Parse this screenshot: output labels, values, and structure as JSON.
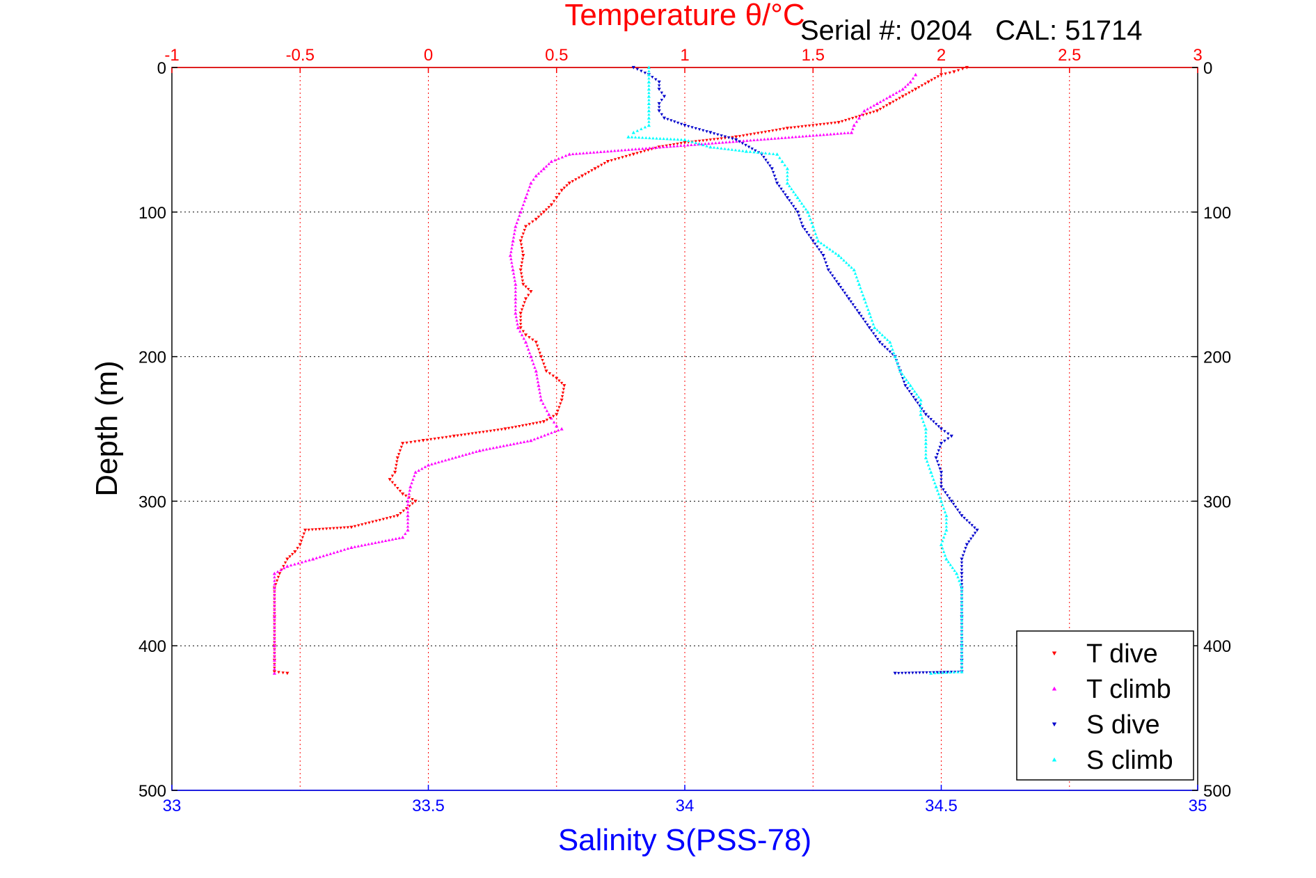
{
  "chart_data": {
    "type": "scatter",
    "title": "Temperature θ/°C",
    "serial_label": "Serial #: 0204   CAL: 51714",
    "xlabel_top": "Temperature θ/°C",
    "xlabel_bottom": "Salinity S(PSS-78)",
    "ylabel": "Depth (m)",
    "y_inverted": true,
    "ylim": [
      0,
      500
    ],
    "xlim_top": [
      -1,
      3
    ],
    "xlim_bottom": [
      33,
      35
    ],
    "grid": true,
    "legend_position": "bottom-right",
    "ticks_top": [
      "-1",
      "-0.5",
      "0",
      "0.5",
      "1",
      "1.5",
      "2",
      "2.5",
      "3"
    ],
    "ticks_bottom": [
      "33",
      "33.5",
      "34",
      "34.5",
      "35"
    ],
    "ticks_depth": [
      "0",
      "100",
      "200",
      "300",
      "400",
      "500"
    ],
    "colors": {
      "t_dive": "#ff0000",
      "t_climb": "#ff00ff",
      "s_dive": "#0000cc",
      "s_climb": "#00ffff",
      "grid_top": "#ff0000",
      "grid_depth": "#000000"
    },
    "series": [
      {
        "name": "T dive",
        "axis": "temperature",
        "marker": "triangle-down",
        "points": [
          [
            2.1,
            0
          ],
          [
            2.05,
            3
          ],
          [
            2.0,
            5
          ],
          [
            1.95,
            10
          ],
          [
            1.9,
            15
          ],
          [
            1.85,
            20
          ],
          [
            1.8,
            25
          ],
          [
            1.75,
            30
          ],
          [
            1.6,
            38
          ],
          [
            1.4,
            42
          ],
          [
            1.2,
            48
          ],
          [
            1.0,
            52
          ],
          [
            0.9,
            55
          ],
          [
            0.8,
            60
          ],
          [
            0.7,
            65
          ],
          [
            0.65,
            70
          ],
          [
            0.6,
            75
          ],
          [
            0.55,
            80
          ],
          [
            0.52,
            85
          ],
          [
            0.5,
            90
          ],
          [
            0.48,
            95
          ],
          [
            0.45,
            100
          ],
          [
            0.42,
            105
          ],
          [
            0.38,
            110
          ],
          [
            0.36,
            120
          ],
          [
            0.37,
            130
          ],
          [
            0.36,
            140
          ],
          [
            0.37,
            150
          ],
          [
            0.4,
            155
          ],
          [
            0.38,
            160
          ],
          [
            0.36,
            170
          ],
          [
            0.36,
            180
          ],
          [
            0.38,
            185
          ],
          [
            0.42,
            190
          ],
          [
            0.44,
            200
          ],
          [
            0.46,
            210
          ],
          [
            0.5,
            215
          ],
          [
            0.53,
            220
          ],
          [
            0.52,
            230
          ],
          [
            0.5,
            240
          ],
          [
            0.45,
            245
          ],
          [
            0.3,
            250
          ],
          [
            0.1,
            255
          ],
          [
            -0.02,
            258
          ],
          [
            -0.1,
            260
          ],
          [
            -0.12,
            270
          ],
          [
            -0.13,
            280
          ],
          [
            -0.15,
            285
          ],
          [
            -0.1,
            295
          ],
          [
            -0.05,
            300
          ],
          [
            -0.12,
            310
          ],
          [
            -0.3,
            318
          ],
          [
            -0.48,
            320
          ],
          [
            -0.5,
            330
          ],
          [
            -0.52,
            335
          ],
          [
            -0.55,
            340
          ],
          [
            -0.58,
            350
          ],
          [
            -0.6,
            360
          ],
          [
            -0.6,
            380
          ],
          [
            -0.6,
            400
          ],
          [
            -0.6,
            410
          ],
          [
            -0.6,
            418
          ],
          [
            -0.55,
            419
          ]
        ]
      },
      {
        "name": "T climb",
        "axis": "temperature",
        "marker": "triangle-up",
        "points": [
          [
            1.9,
            5
          ],
          [
            1.88,
            10
          ],
          [
            1.85,
            15
          ],
          [
            1.8,
            20
          ],
          [
            1.75,
            25
          ],
          [
            1.7,
            30
          ],
          [
            1.68,
            35
          ],
          [
            1.66,
            40
          ],
          [
            1.65,
            45
          ],
          [
            0.55,
            60
          ],
          [
            0.48,
            65
          ],
          [
            0.45,
            70
          ],
          [
            0.42,
            75
          ],
          [
            0.4,
            80
          ],
          [
            0.38,
            90
          ],
          [
            0.36,
            100
          ],
          [
            0.34,
            110
          ],
          [
            0.33,
            120
          ],
          [
            0.32,
            130
          ],
          [
            0.33,
            140
          ],
          [
            0.34,
            150
          ],
          [
            0.34,
            160
          ],
          [
            0.34,
            170
          ],
          [
            0.35,
            180
          ],
          [
            0.38,
            190
          ],
          [
            0.4,
            200
          ],
          [
            0.42,
            210
          ],
          [
            0.43,
            220
          ],
          [
            0.44,
            230
          ],
          [
            0.47,
            240
          ],
          [
            0.5,
            248
          ],
          [
            0.52,
            250
          ],
          [
            0.4,
            258
          ],
          [
            0.2,
            265
          ],
          [
            0.0,
            275
          ],
          [
            -0.05,
            280
          ],
          [
            -0.07,
            290
          ],
          [
            -0.08,
            300
          ],
          [
            -0.08,
            310
          ],
          [
            -0.08,
            320
          ],
          [
            -0.1,
            325
          ],
          [
            -0.3,
            332
          ],
          [
            -0.45,
            340
          ],
          [
            -0.55,
            345
          ],
          [
            -0.6,
            350
          ],
          [
            -0.6,
            360
          ],
          [
            -0.6,
            380
          ],
          [
            -0.6,
            400
          ],
          [
            -0.6,
            410
          ],
          [
            -0.6,
            419
          ]
        ]
      },
      {
        "name": "S dive",
        "axis": "salinity",
        "marker": "triangle-down",
        "points": [
          [
            33.9,
            0
          ],
          [
            33.93,
            5
          ],
          [
            33.95,
            10
          ],
          [
            33.95,
            15
          ],
          [
            33.96,
            20
          ],
          [
            33.95,
            25
          ],
          [
            33.95,
            30
          ],
          [
            33.96,
            35
          ],
          [
            34.0,
            40
          ],
          [
            34.05,
            45
          ],
          [
            34.1,
            50
          ],
          [
            34.15,
            60
          ],
          [
            34.17,
            70
          ],
          [
            34.18,
            80
          ],
          [
            34.2,
            90
          ],
          [
            34.22,
            100
          ],
          [
            34.23,
            110
          ],
          [
            34.25,
            120
          ],
          [
            34.27,
            130
          ],
          [
            34.28,
            140
          ],
          [
            34.3,
            150
          ],
          [
            34.32,
            160
          ],
          [
            34.34,
            170
          ],
          [
            34.36,
            180
          ],
          [
            34.38,
            190
          ],
          [
            34.41,
            200
          ],
          [
            34.42,
            210
          ],
          [
            34.43,
            220
          ],
          [
            34.45,
            230
          ],
          [
            34.47,
            240
          ],
          [
            34.5,
            250
          ],
          [
            34.52,
            255
          ],
          [
            34.5,
            260
          ],
          [
            34.49,
            270
          ],
          [
            34.5,
            280
          ],
          [
            34.5,
            290
          ],
          [
            34.52,
            300
          ],
          [
            34.54,
            310
          ],
          [
            34.57,
            320
          ],
          [
            34.55,
            330
          ],
          [
            34.54,
            340
          ],
          [
            34.54,
            350
          ],
          [
            34.54,
            360
          ],
          [
            34.54,
            380
          ],
          [
            34.54,
            400
          ],
          [
            34.54,
            410
          ],
          [
            34.54,
            418
          ],
          [
            34.41,
            419
          ]
        ]
      },
      {
        "name": "S climb",
        "axis": "salinity",
        "marker": "triangle-up",
        "points": [
          [
            33.93,
            0
          ],
          [
            33.93,
            5
          ],
          [
            33.93,
            10
          ],
          [
            33.93,
            15
          ],
          [
            33.93,
            20
          ],
          [
            33.93,
            25
          ],
          [
            33.93,
            30
          ],
          [
            33.93,
            35
          ],
          [
            33.93,
            40
          ],
          [
            33.9,
            45
          ],
          [
            33.89,
            48
          ],
          [
            34.0,
            50
          ],
          [
            34.05,
            55
          ],
          [
            34.12,
            58
          ],
          [
            34.18,
            60
          ],
          [
            34.19,
            65
          ],
          [
            34.2,
            70
          ],
          [
            34.2,
            80
          ],
          [
            34.22,
            90
          ],
          [
            34.24,
            100
          ],
          [
            34.25,
            110
          ],
          [
            34.26,
            120
          ],
          [
            34.3,
            130
          ],
          [
            34.33,
            140
          ],
          [
            34.34,
            150
          ],
          [
            34.35,
            160
          ],
          [
            34.36,
            170
          ],
          [
            34.37,
            180
          ],
          [
            34.4,
            190
          ],
          [
            34.41,
            200
          ],
          [
            34.42,
            210
          ],
          [
            34.44,
            220
          ],
          [
            34.46,
            230
          ],
          [
            34.46,
            240
          ],
          [
            34.47,
            250
          ],
          [
            34.47,
            260
          ],
          [
            34.47,
            270
          ],
          [
            34.48,
            280
          ],
          [
            34.49,
            290
          ],
          [
            34.5,
            300
          ],
          [
            34.51,
            310
          ],
          [
            34.51,
            320
          ],
          [
            34.5,
            330
          ],
          [
            34.51,
            340
          ],
          [
            34.53,
            350
          ],
          [
            34.54,
            360
          ],
          [
            34.54,
            380
          ],
          [
            34.54,
            400
          ],
          [
            34.54,
            410
          ],
          [
            34.54,
            418
          ],
          [
            34.48,
            419
          ]
        ]
      }
    ]
  }
}
